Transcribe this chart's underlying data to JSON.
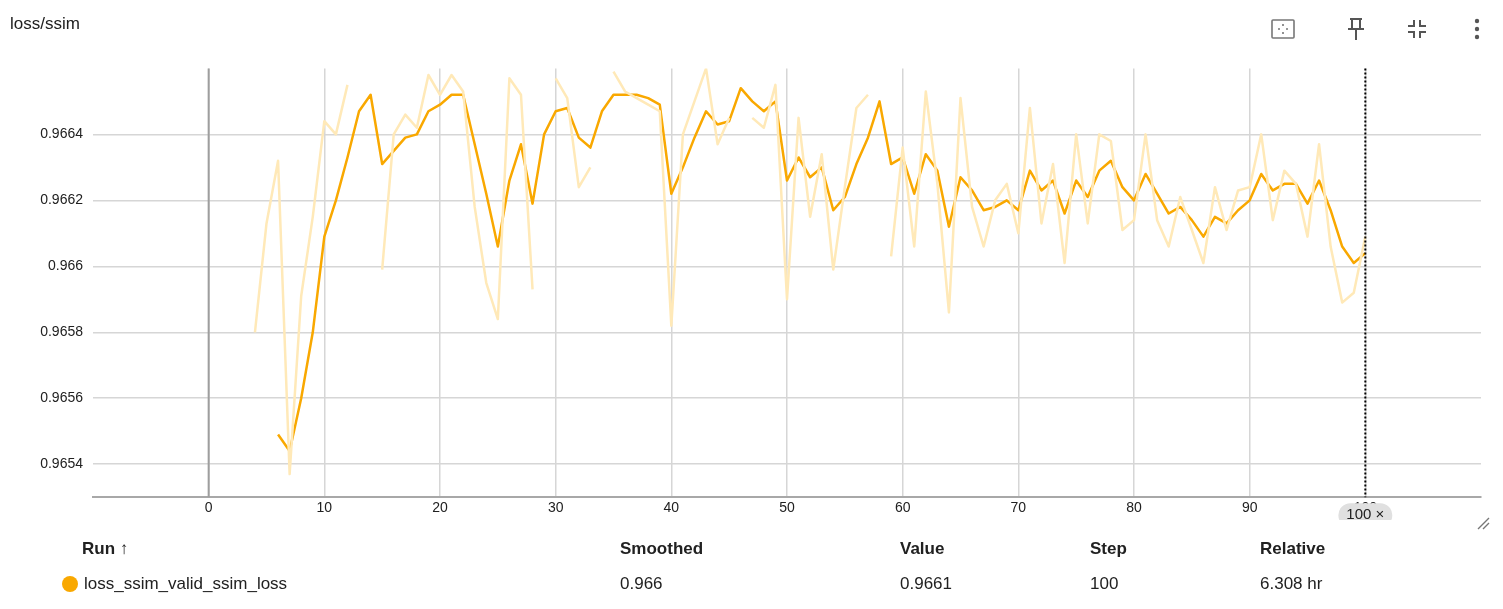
{
  "chart_data": {
    "type": "line",
    "title": "loss/ssim",
    "x": [
      4,
      5,
      6,
      7,
      8,
      9,
      10,
      11,
      12,
      13,
      14,
      15,
      16,
      17,
      18,
      19,
      20,
      21,
      22,
      23,
      24,
      25,
      26,
      27,
      28,
      29,
      30,
      31,
      32,
      33,
      34,
      35,
      36,
      37,
      38,
      39,
      40,
      41,
      42,
      43,
      44,
      45,
      46,
      47,
      48,
      49,
      50,
      51,
      52,
      53,
      54,
      55,
      56,
      57,
      58,
      59,
      60,
      61,
      62,
      63,
      64,
      65,
      66,
      67,
      68,
      69,
      70,
      71,
      72,
      73,
      74,
      75,
      76,
      77,
      78,
      79,
      80,
      81,
      82,
      83,
      84,
      85,
      86,
      87,
      88,
      89,
      90,
      91,
      92,
      93,
      94,
      95,
      96,
      97,
      98,
      99,
      100
    ],
    "series": [
      {
        "color": "#ffe9b8",
        "values": [
          0.9658,
          0.96613,
          0.96632,
          0.96537,
          0.96591,
          0.96615,
          0.96644,
          0.9664,
          0.96655,
          null,
          null,
          0.96599,
          0.9664,
          0.96646,
          0.96642,
          0.96658,
          0.96652,
          0.96658,
          0.96653,
          0.96618,
          0.96595,
          0.96584,
          0.96657,
          0.96652,
          0.96593,
          null,
          0.96657,
          0.96651,
          0.96624,
          0.9663,
          null,
          0.96659,
          0.96653,
          0.96651,
          0.96649,
          0.96647,
          0.96582,
          0.9664,
          0.9665,
          0.9666,
          0.96637,
          0.96645,
          null,
          0.96645,
          0.96642,
          0.96655,
          0.9659,
          0.96645,
          0.96615,
          0.96634,
          0.96599,
          0.96624,
          0.96648,
          0.96652,
          null,
          0.96603,
          0.96636,
          0.96606,
          0.96653,
          0.96625,
          0.96586,
          0.96651,
          0.96618,
          0.96606,
          0.9662,
          0.96625,
          0.9661,
          0.96648,
          0.96613,
          0.96631,
          0.96601,
          0.9664,
          0.96613,
          0.9664,
          0.96638,
          0.96611,
          0.96614,
          0.9664,
          0.96614,
          0.96606,
          0.96621,
          0.96611,
          0.96601,
          0.96624,
          0.96611,
          0.96623,
          0.96624,
          0.9664,
          0.96614,
          0.96629,
          0.96625,
          0.96609,
          0.96637,
          0.96606,
          0.96589,
          0.96592,
          0.96609
        ]
      },
      {
        "name": "loss_ssim_valid_ssim_loss",
        "color": "#f9a800",
        "values": [
          null,
          null,
          0.96549,
          0.96544,
          0.9656,
          0.9658,
          0.96609,
          0.9662,
          0.96633,
          0.96647,
          0.96652,
          0.96631,
          0.96635,
          0.96639,
          0.9664,
          0.96647,
          0.96649,
          0.96652,
          0.96652,
          0.96637,
          0.96622,
          0.96606,
          0.96626,
          0.96637,
          0.96619,
          0.9664,
          0.96647,
          0.96648,
          0.96639,
          0.96636,
          0.96647,
          0.96652,
          0.96652,
          0.96652,
          0.96651,
          0.96649,
          0.96622,
          0.9663,
          0.96639,
          0.96647,
          0.96643,
          0.96644,
          0.96654,
          0.9665,
          0.96647,
          0.9665,
          0.96626,
          0.96633,
          0.96627,
          0.9663,
          0.96617,
          0.96621,
          0.96631,
          0.96639,
          0.9665,
          0.96631,
          0.96633,
          0.96622,
          0.96634,
          0.96629,
          0.96612,
          0.96627,
          0.96623,
          0.96617,
          0.96618,
          0.9662,
          0.96617,
          0.96629,
          0.96623,
          0.96626,
          0.96616,
          0.96626,
          0.96621,
          0.96629,
          0.96632,
          0.96624,
          0.9662,
          0.96628,
          0.96622,
          0.96616,
          0.96618,
          0.96614,
          0.96609,
          0.96615,
          0.96613,
          0.96617,
          0.9662,
          0.96628,
          0.96623,
          0.96625,
          0.96625,
          0.96619,
          0.96626,
          0.96617,
          0.96606,
          0.96601,
          0.96604
        ]
      }
    ],
    "xlim": [
      -10,
      110
    ],
    "xticks": [
      0,
      10,
      20,
      30,
      40,
      50,
      60,
      70,
      80,
      90,
      100
    ],
    "ylim": [
      0.9653,
      0.9666
    ],
    "yticks": [
      0.9654,
      0.9656,
      0.9658,
      0.966,
      0.9662,
      0.9664
    ],
    "grid": true,
    "legend": "bottom",
    "marker": "none",
    "line_style": "solid",
    "ref_lines": [
      {
        "axis": "x",
        "value": 0,
        "color": "#9e9e9e",
        "line_style": "solid"
      },
      {
        "axis": "x",
        "value": 100,
        "label": "100 ×",
        "color": "#000000",
        "line_style": "dotted"
      }
    ],
    "annotations": [
      "Run ↑",
      "Smoothed",
      "Value",
      "Step",
      "Relative",
      "0.966",
      "0.9661",
      "100",
      "6.308 hr"
    ]
  }
}
